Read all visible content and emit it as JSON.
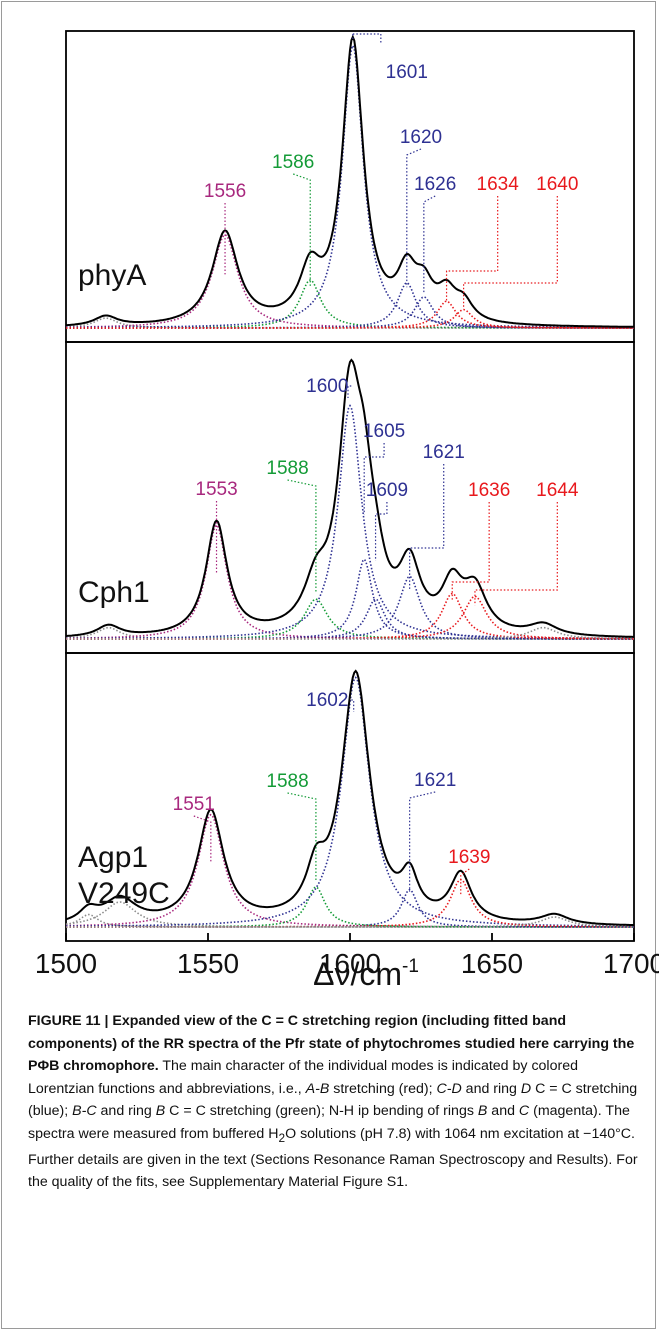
{
  "chart_data": {
    "type": "line",
    "xlabel": "Δν/cm",
    "xlabel_sup": "-1",
    "xlim": [
      1500,
      1700
    ],
    "xticks": [
      "1500",
      "1550",
      "1600",
      "1650",
      "1700"
    ],
    "grid": false,
    "colors": {
      "spectrum": "#000000",
      "A-B stretching": "#e8191d",
      "C-D and ring D C=C stretching": "#2e3192",
      "B-C and ring B C=C stretching": "#149b37",
      "N-H ip bending": "#a8287e",
      "other": "#8c8c8c"
    },
    "panels": [
      {
        "name": "phyA",
        "label": "phyA",
        "components": [
          {
            "center": 1514,
            "amp": 0.035,
            "hw": 5,
            "color_class": "other"
          },
          {
            "center": 1556,
            "amp": 0.33,
            "hw": 5.5,
            "color_class": "N-H ip bending"
          },
          {
            "center": 1586,
            "amp": 0.17,
            "hw": 4.5,
            "color_class": "B-C and ring B C=C stretching"
          },
          {
            "center": 1601,
            "amp": 1.0,
            "hw": 4.5,
            "color_class": "C-D and ring D C=C stretching"
          },
          {
            "center": 1620,
            "amp": 0.16,
            "hw": 4,
            "color_class": "C-D and ring D C=C stretching"
          },
          {
            "center": 1626,
            "amp": 0.11,
            "hw": 4,
            "color_class": "C-D and ring D C=C stretching"
          },
          {
            "center": 1634,
            "amp": 0.095,
            "hw": 4,
            "color_class": "A-B stretching"
          },
          {
            "center": 1640,
            "amp": 0.065,
            "hw": 4,
            "color_class": "A-B stretching"
          }
        ],
        "band_labels": [
          {
            "text": "1601",
            "position": 1601,
            "color_class": "C-D and ring D C=C stretching"
          },
          {
            "text": "1586",
            "position": 1586,
            "color_class": "B-C and ring B C=C stretching"
          },
          {
            "text": "1556",
            "position": 1556,
            "color_class": "N-H ip bending"
          },
          {
            "text": "1620",
            "position": 1620,
            "color_class": "C-D and ring D C=C stretching"
          },
          {
            "text": "1626",
            "position": 1626,
            "color_class": "C-D and ring D C=C stretching"
          },
          {
            "text": "1634",
            "position": 1634,
            "color_class": "A-B stretching"
          },
          {
            "text": "1640",
            "position": 1640,
            "color_class": "A-B stretching"
          }
        ]
      },
      {
        "name": "Cph1",
        "label": "Cph1",
        "components": [
          {
            "center": 1515,
            "amp": 0.04,
            "hw": 5,
            "color_class": "other"
          },
          {
            "center": 1553,
            "amp": 0.4,
            "hw": 4.5,
            "color_class": "N-H ip bending"
          },
          {
            "center": 1588,
            "amp": 0.14,
            "hw": 5,
            "color_class": "B-C and ring B C=C stretching"
          },
          {
            "center": 1600,
            "amp": 0.82,
            "hw": 5,
            "color_class": "C-D and ring D C=C stretching"
          },
          {
            "center": 1605,
            "amp": 0.28,
            "hw": 3.5,
            "color_class": "C-D and ring D C=C stretching"
          },
          {
            "center": 1609,
            "amp": 0.14,
            "hw": 4,
            "color_class": "C-D and ring D C=C stretching"
          },
          {
            "center": 1621,
            "amp": 0.22,
            "hw": 4.5,
            "color_class": "C-D and ring D C=C stretching"
          },
          {
            "center": 1636,
            "amp": 0.16,
            "hw": 4.5,
            "color_class": "A-B stretching"
          },
          {
            "center": 1644,
            "amp": 0.15,
            "hw": 5,
            "color_class": "A-B stretching"
          },
          {
            "center": 1668,
            "amp": 0.04,
            "hw": 6,
            "color_class": "other"
          }
        ],
        "band_labels": [
          {
            "text": "1600",
            "position": 1600,
            "color_class": "C-D and ring D C=C stretching"
          },
          {
            "text": "1588",
            "position": 1588,
            "color_class": "B-C and ring B C=C stretching"
          },
          {
            "text": "1605",
            "position": 1605,
            "color_class": "C-D and ring D C=C stretching"
          },
          {
            "text": "1621",
            "position": 1621,
            "color_class": "C-D and ring D C=C stretching"
          },
          {
            "text": "1553",
            "position": 1553,
            "color_class": "N-H ip bending"
          },
          {
            "text": "1609",
            "position": 1609,
            "color_class": "C-D and ring D C=C stretching"
          },
          {
            "text": "1636",
            "position": 1636,
            "color_class": "A-B stretching"
          },
          {
            "text": "1644",
            "position": 1644,
            "color_class": "A-B stretching"
          }
        ]
      },
      {
        "name": "Agp1 V249C",
        "label": [
          "Agp1",
          "V249C"
        ],
        "components": [
          {
            "center": 1508,
            "amp": 0.05,
            "hw": 4,
            "color_class": "other"
          },
          {
            "center": 1519,
            "amp": 0.1,
            "hw": 7,
            "color_class": "other"
          },
          {
            "center": 1551,
            "amp": 0.45,
            "hw": 5.5,
            "color_class": "N-H ip bending"
          },
          {
            "center": 1588,
            "amp": 0.16,
            "hw": 4,
            "color_class": "B-C and ring B C=C stretching"
          },
          {
            "center": 1602,
            "amp": 1.0,
            "hw": 6,
            "color_class": "C-D and ring D C=C stretching"
          },
          {
            "center": 1621,
            "amp": 0.15,
            "hw": 3.5,
            "color_class": "C-D and ring D C=C stretching"
          },
          {
            "center": 1639,
            "amp": 0.19,
            "hw": 4.5,
            "color_class": "A-B stretching"
          },
          {
            "center": 1672,
            "amp": 0.04,
            "hw": 6,
            "color_class": "other"
          }
        ],
        "band_labels": [
          {
            "text": "1602",
            "position": 1602,
            "color_class": "C-D and ring D C=C stretching"
          },
          {
            "text": "1588",
            "position": 1588,
            "color_class": "B-C and ring B C=C stretching"
          },
          {
            "text": "1621",
            "position": 1621,
            "color_class": "C-D and ring D C=C stretching"
          },
          {
            "text": "1551",
            "position": 1551,
            "color_class": "N-H ip bending"
          },
          {
            "text": "1639",
            "position": 1639,
            "color_class": "A-B stretching"
          }
        ]
      }
    ]
  },
  "caption": {
    "head": "FIGURE 11 | Expanded view of the C = C stretching region (including fitted band components) of the RR spectra of the Pfr state of phytochromes studied here carrying the PΦB chromophore.",
    "t1": " The main character of the individual modes is indicated by colored Lorentzian functions and abbreviations, i.e., ",
    "i1": "A-B",
    "t2": " stretching (red); ",
    "i2": "C-D",
    "t3": " and ring ",
    "i3": "D",
    "t4": " C = C stretching (blue); ",
    "i4": "B-C",
    "t5": " and ring ",
    "i5": "B",
    "t6": " C = C stretching (green); N-H ip bending of rings ",
    "i6": "B",
    "t7": " and ",
    "i7": "C",
    "t8": " (magenta). The spectra were measured from buffered H",
    "sub": "2",
    "t9": "O solutions (pH 7.8) with 1064 nm excitation at −140°C. Further details are given in the text (Sections Resonance Raman Spectroscopy and Results). For the quality of the fits, see Supplementary Material Figure S1."
  }
}
